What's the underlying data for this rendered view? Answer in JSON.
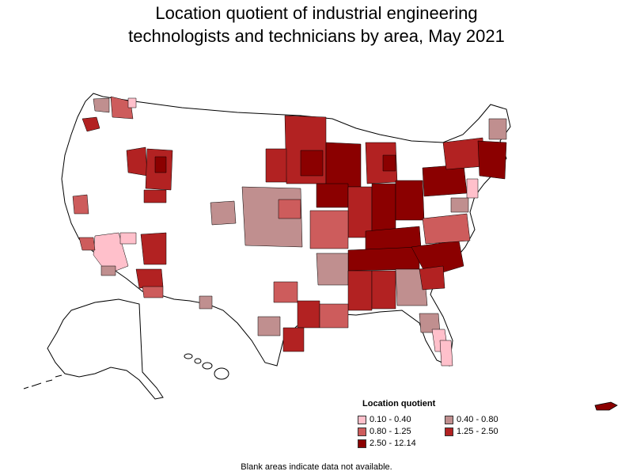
{
  "header": {
    "title_line1": "Location quotient of industrial engineering",
    "title_line2": "technologists and technicians by area, May 2021"
  },
  "legend": {
    "title": "Location quotient",
    "items": [
      {
        "label": "0.10 - 0.40",
        "color": "#ffc0cb"
      },
      {
        "label": "0.40 - 0.80",
        "color": "#c08f8f"
      },
      {
        "label": "0.80 - 1.25",
        "color": "#cd5c5c"
      },
      {
        "label": "1.25 - 2.50",
        "color": "#b22222"
      },
      {
        "label": "2.50 - 12.14",
        "color": "#8b0000"
      }
    ]
  },
  "footer": {
    "note": "Blank areas indicate data not available."
  },
  "colors": {
    "no_data": "#ffffff",
    "border": "#000000"
  }
}
